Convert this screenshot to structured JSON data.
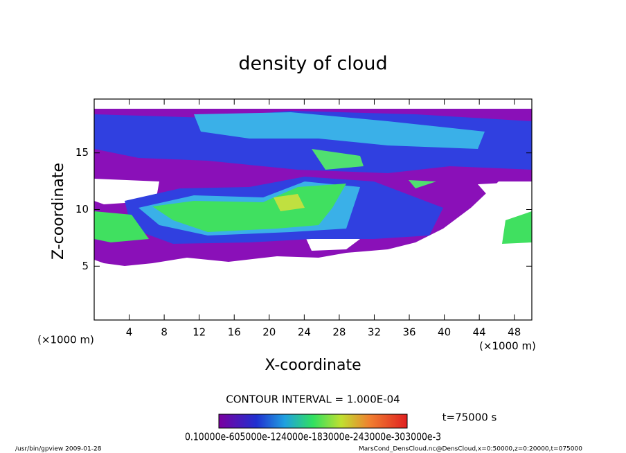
{
  "chart_data": {
    "type": "contour",
    "title": "density of cloud",
    "x_label": "X-coordinate",
    "y_label": "Z-coordinate",
    "x_unit": "(×1000 m)",
    "y_unit": "(×1000 m)",
    "contour_interval": "CONTOUR INTERVAL = 1.000E-04",
    "time_label": "t=75000 s",
    "colorbar_labels": "0.10000e-605000e-124000e-183000e-243000e-303000e-3",
    "footer_left": "/usr/bin/gpview   2009-01-28",
    "footer_right": "MarsCond_DensCloud.nc@DensCloud,x=0:50000,z=0:20000,t=075000",
    "xlim": [
      0,
      50
    ],
    "ylim": [
      0.25,
      19.75
    ],
    "xticks": [
      4,
      8,
      12,
      16,
      20,
      24,
      28,
      32,
      36,
      40,
      44,
      48
    ],
    "yticks": [
      5,
      10,
      15
    ]
  }
}
